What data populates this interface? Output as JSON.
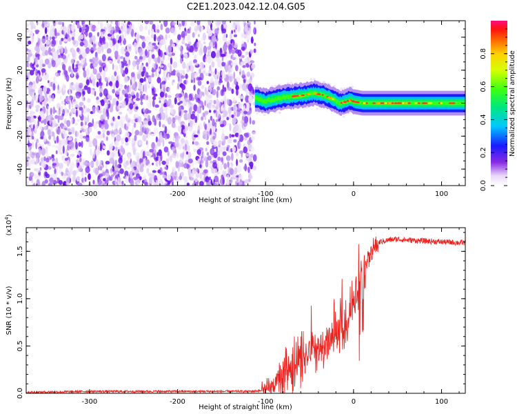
{
  "figure_title": "C2E1.2023.042.12.04.G05",
  "colors": {
    "snr_line": "#e8231e",
    "spectrogram_low": "#e6d6f7",
    "spectrogram_mid": "#7a1ff0",
    "axis": "#000000"
  },
  "chart_data": [
    {
      "type": "heatmap",
      "title": "C2E1.2023.042.12.04.G05",
      "xlabel": "Height of straight line (km)",
      "ylabel": "Frequency (Hz)",
      "xlim": [
        -372,
        127
      ],
      "ylim": [
        -50,
        50
      ],
      "x_ticks": [
        -300,
        -200,
        -100,
        0,
        100
      ],
      "y_ticks": [
        -40,
        -20,
        0,
        20,
        40
      ],
      "x_tick_labels": [
        "-300",
        "-200",
        "-100",
        "0",
        "100"
      ],
      "y_tick_labels": [
        "-40",
        "-20",
        "0",
        "20",
        "40"
      ],
      "grid": false,
      "noise_region_x": [
        -372,
        -112
      ],
      "signal_trace": {
        "x": [
          -112,
          -100,
          -85,
          -70,
          -55,
          -45,
          -35,
          -25,
          -15,
          -8,
          -3,
          0,
          10,
          30,
          60,
          90,
          127
        ],
        "y": [
          3,
          1,
          3,
          4,
          5,
          6,
          5,
          3,
          0,
          1,
          2,
          1,
          0,
          0,
          0,
          0,
          0
        ]
      },
      "colorbar": {
        "label": "Normalized spectral amplitude",
        "ticks": [
          0.0,
          0.2,
          0.4,
          0.6,
          0.8
        ],
        "tick_labels": [
          "0.0",
          "0.2",
          "0.4",
          "0.6",
          "0.8"
        ],
        "range": [
          0,
          1
        ]
      }
    },
    {
      "type": "line",
      "xlabel": "Height of straight line (km)",
      "ylabel": "SNR (10 * v/v)",
      "y_scale_label": "(x10",
      "y_scale_exp": "4",
      "y_scale_close": ")",
      "xlim": [
        -372,
        127
      ],
      "ylim": [
        0,
        1.75
      ],
      "x_ticks": [
        -300,
        -200,
        -100,
        0,
        100
      ],
      "y_ticks": [
        0.0,
        0.5,
        1.0,
        1.5
      ],
      "x_tick_labels": [
        "-300",
        "-200",
        "-100",
        "0",
        "100"
      ],
      "y_tick_labels": [
        "0.0",
        "0.5",
        "1.0",
        "1.5"
      ],
      "grid": false,
      "series": [
        {
          "x": [
            -372,
            -300,
            -200,
            -120,
            -100,
            -90,
            -80,
            -70,
            -60,
            -50,
            -40,
            -30,
            -20,
            -10,
            -5,
            0,
            5,
            10,
            15,
            20,
            25,
            30,
            40,
            50,
            60,
            80,
            100,
            127
          ],
          "y": [
            0.01,
            0.02,
            0.02,
            0.02,
            0.03,
            0.08,
            0.18,
            0.28,
            0.34,
            0.42,
            0.46,
            0.52,
            0.6,
            0.72,
            0.82,
            0.95,
            1.1,
            1.25,
            1.38,
            1.48,
            1.55,
            1.6,
            1.62,
            1.63,
            1.62,
            1.61,
            1.6,
            1.59
          ]
        }
      ]
    }
  ]
}
